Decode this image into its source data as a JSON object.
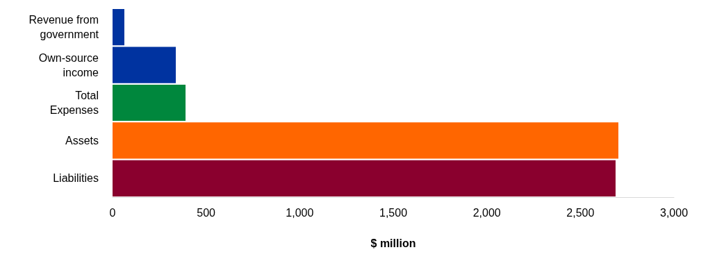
{
  "chart_data": {
    "type": "bar",
    "orientation": "horizontal",
    "xlabel": "$ million",
    "categories": [
      "Revenue from\ngovernment",
      "Own-source\nincome",
      "Total\nExpenses",
      "Assets",
      "Liabilities"
    ],
    "values": [
      63,
      338,
      390,
      2703,
      2688
    ],
    "colors": [
      "#0033a0",
      "#0033a0",
      "#00873d",
      "#ff6600",
      "#8a002e"
    ],
    "xlim": [
      0,
      3000
    ],
    "xticks": [
      0,
      500,
      {
        "value": 1000,
        "label": "1,000"
      },
      {
        "value": 1500,
        "label": "1,500"
      },
      {
        "value": 2000,
        "label": "2,000"
      },
      {
        "value": 2500,
        "label": "2,500"
      },
      {
        "value": 3000,
        "label": "3,000"
      }
    ]
  }
}
